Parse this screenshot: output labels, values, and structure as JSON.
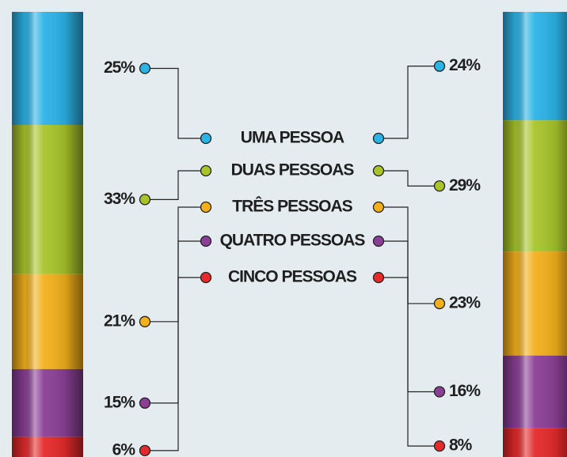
{
  "chart_data": {
    "type": "stacked-column",
    "categories": [
      "UMA PESSOA",
      "DUAS PESSOAS",
      "TRÊS PESSOAS",
      "QUATRO PESSOAS",
      "CINCO PESSOAS"
    ],
    "colors": [
      "#2bb3e6",
      "#a8c42a",
      "#f3b01b",
      "#8a3f95",
      "#e42a2a"
    ],
    "series": [
      {
        "values": [
          25,
          33,
          21,
          15,
          6
        ],
        "value_labels": [
          "25%",
          "33%",
          "21%",
          "15%",
          "6%"
        ]
      },
      {
        "values": [
          24,
          29,
          23,
          16,
          8
        ],
        "value_labels": [
          "24%",
          "29%",
          "23%",
          "16%",
          "8%"
        ]
      }
    ]
  }
}
